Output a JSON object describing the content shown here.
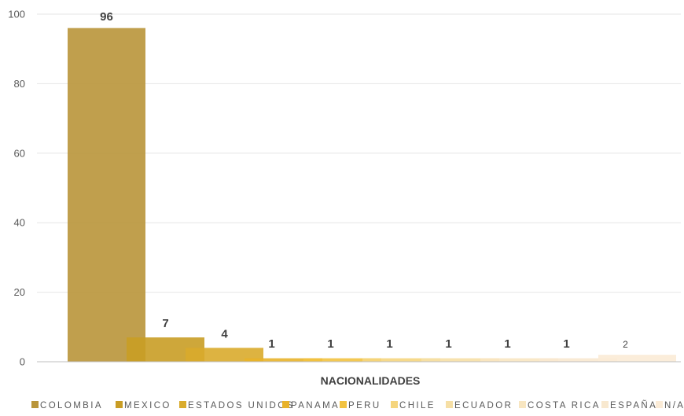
{
  "chart_data": {
    "type": "bar",
    "title": "",
    "xlabel": "NACIONALIDADES",
    "ylabel": "",
    "ylim": [
      0,
      100
    ],
    "yticks": [
      0,
      20,
      40,
      60,
      80,
      100
    ],
    "grid": true,
    "legend_position": "bottom",
    "series": [
      {
        "name": "COLOMBIA",
        "value": 96,
        "label": "96",
        "color": "#B9953A"
      },
      {
        "name": "MEXICO",
        "value": 7,
        "label": "7",
        "color": "#C99D25"
      },
      {
        "name": "ESTADOS UNIDOS",
        "value": 4,
        "label": "4",
        "color": "#D9AB2C"
      },
      {
        "name": "PANAMA",
        "value": 1,
        "label": "1",
        "color": "#E8B22A"
      },
      {
        "name": "PERU",
        "value": 1,
        "label": "1",
        "color": "#F2C240"
      },
      {
        "name": "CHILE",
        "value": 1,
        "label": "1",
        "color": "#F5D57E"
      },
      {
        "name": "ECUADOR",
        "value": 1,
        "label": "1",
        "color": "#F6DFA5"
      },
      {
        "name": "COSTA RICA",
        "value": 1,
        "label": "1",
        "color": "#F8E6C1"
      },
      {
        "name": "ESPAÑA",
        "value": 1,
        "label": "1",
        "color": "#F8E8CF"
      },
      {
        "name": "N/A",
        "value": 2,
        "label": "2",
        "color": "#FBEBD6"
      }
    ]
  }
}
